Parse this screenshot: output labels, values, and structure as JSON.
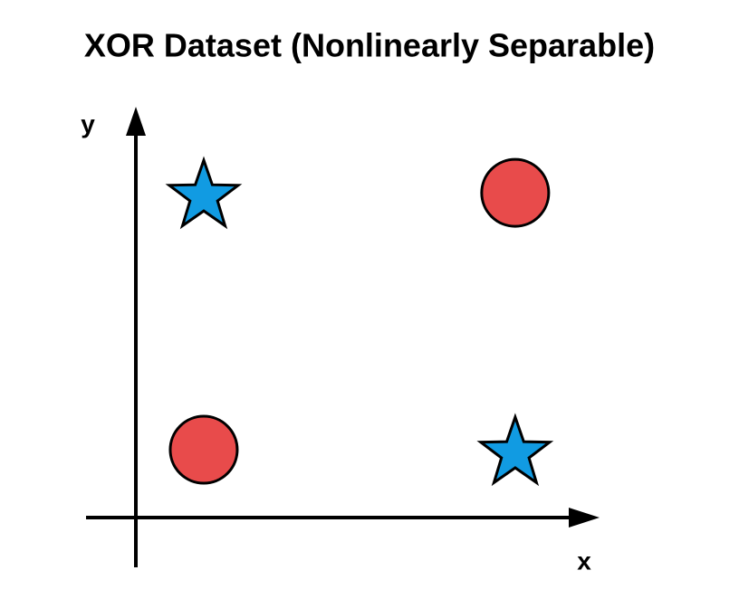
{
  "chart_data": {
    "type": "scatter",
    "title": "XOR Dataset (Nonlinearly Separable)",
    "x_label": "x",
    "y_label": "y",
    "series": [
      {
        "marker": "star",
        "color": "#119be2",
        "x": [
          0,
          1
        ],
        "y": [
          1,
          0
        ]
      },
      {
        "marker": "circle",
        "color": "#e84b4b",
        "x": [
          0,
          1
        ],
        "y": [
          0,
          1
        ]
      }
    ],
    "xlim": [
      -0.218,
      1.265
    ],
    "ylim": [
      -0.264,
      1.335
    ]
  }
}
